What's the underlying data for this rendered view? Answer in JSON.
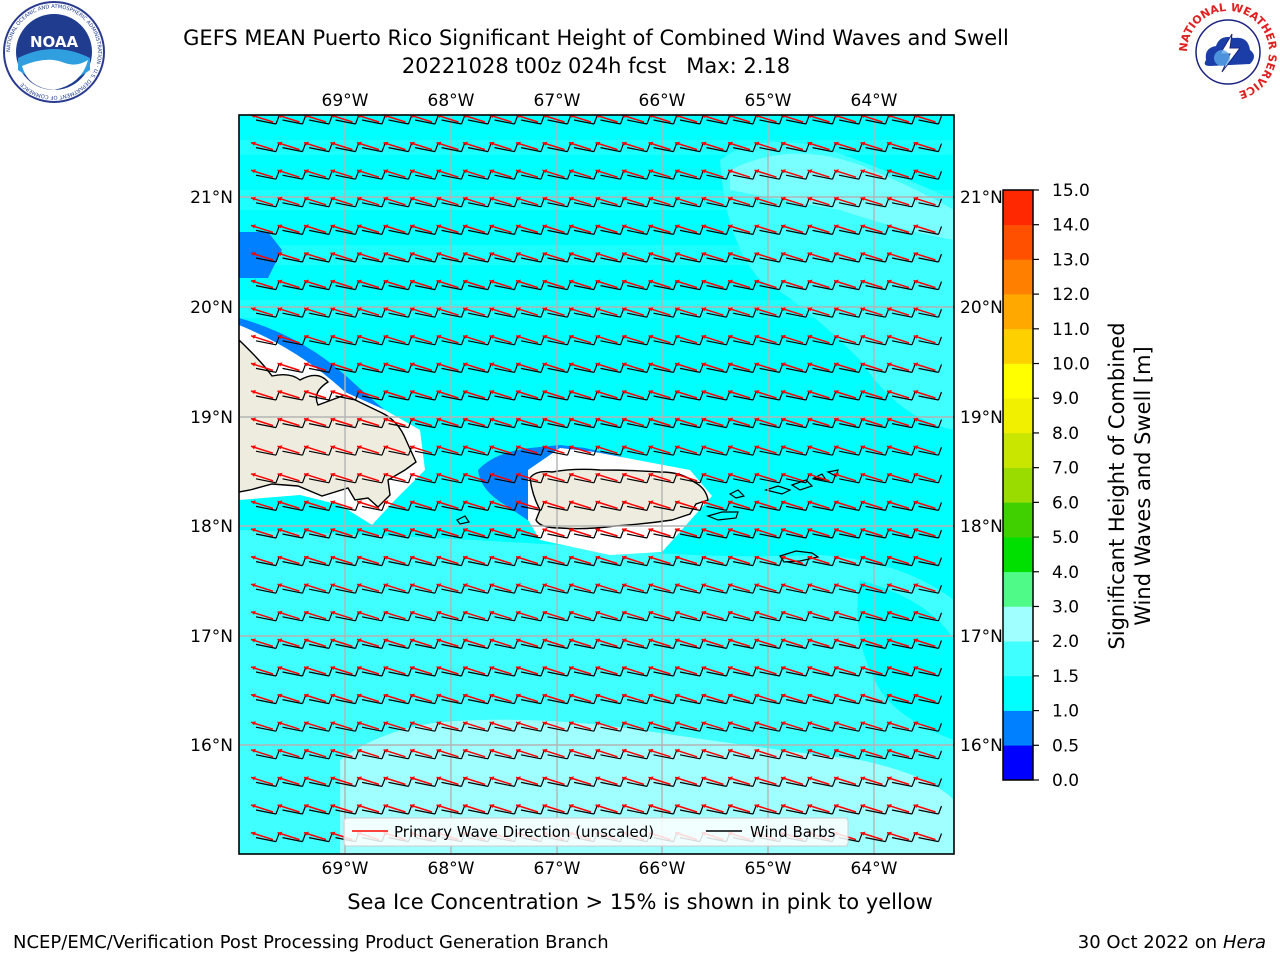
{
  "title_line1": "GEFS MEAN Puerto Rico Significant Height of Combined Wind Waves and Swell",
  "title_line2": "20221028 t00z 024h fcst   Max: 2.18",
  "caption": "Sea Ice Concentration > 15% is shown in pink to yellow",
  "footer_left": "NCEP/EMC/Verification Post Processing Product Generation Branch",
  "footer_right_prefix": "30 Oct 2022 on ",
  "footer_right_host": "Hera",
  "logos": {
    "noaa": {
      "text": "NOAA",
      "ring_text": "NATIONAL OCEANIC AND ATMOSPHERIC ADMINISTRATION · U.S. DEPARTMENT OF COMMERCE"
    },
    "nws": {
      "ring_text": "NATIONAL WEATHER SERVICE"
    }
  },
  "map": {
    "lon_ticks": [
      "69°W",
      "68°W",
      "67°W",
      "66°W",
      "65°W",
      "64°W"
    ],
    "lat_ticks": [
      "21°N",
      "20°N",
      "19°N",
      "18°N",
      "17°N",
      "16°N"
    ],
    "legend": {
      "wave": "Primary Wave Direction (unscaled)",
      "barb": "Wind Barbs",
      "wave_color": "#ff0000",
      "barb_color": "#000000"
    },
    "land_color": "#eeecdf",
    "ocean_base_color": "#00ffff"
  },
  "colorbar": {
    "label_line1": "Significant Height of Combined",
    "label_line2": "Wind Waves and Swell [m]",
    "ticks": [
      "0.0",
      "0.5",
      "1.0",
      "1.5",
      "2.0",
      "3.0",
      "4.0",
      "5.0",
      "6.0",
      "7.0",
      "8.0",
      "9.0",
      "10.0",
      "11.0",
      "12.0",
      "13.0",
      "14.0",
      "15.0"
    ],
    "colors": [
      "#0000ff",
      "#0080ff",
      "#00ffff",
      "#40ffff",
      "#a0ffff",
      "#4ffa88",
      "#00e000",
      "#40d000",
      "#9bdc00",
      "#c8e600",
      "#f0f000",
      "#ffff00",
      "#ffd000",
      "#ffa800",
      "#ff8000",
      "#ff5000",
      "#ff2800"
    ]
  }
}
